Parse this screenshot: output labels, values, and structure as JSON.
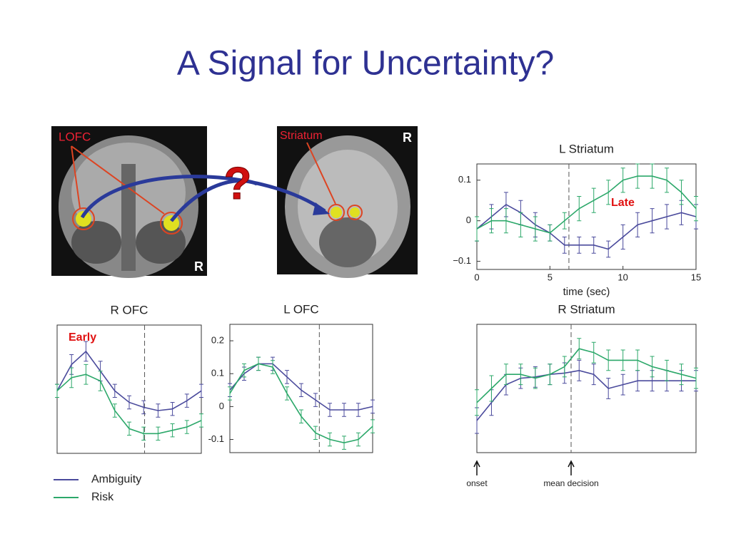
{
  "title": "A Signal for Uncertainty?",
  "images": [
    {
      "label": "LOFC",
      "corner": "R"
    },
    {
      "label": "Striatum",
      "corner": "R"
    }
  ],
  "question": "?",
  "chart_data": [
    {
      "type": "line",
      "title": "R OFC",
      "annotation": "Early",
      "x": [
        0,
        1.5,
        3,
        4.5,
        6,
        7.5,
        9,
        10.5,
        12,
        13.5,
        15
      ],
      "xlim": [
        0,
        15
      ],
      "ylim": [
        -0.14,
        0.25
      ],
      "vline": 9.1,
      "series": [
        {
          "name": "Ambiguity",
          "color": "#4a4a9c",
          "values": [
            0.05,
            0.13,
            0.17,
            0.11,
            0.05,
            0.015,
            0,
            -0.01,
            -0.005,
            0.02,
            0.05
          ],
          "errors": [
            0.02,
            0.03,
            0.03,
            0.03,
            0.02,
            0.02,
            0.02,
            0.02,
            0.02,
            0.02,
            0.02
          ]
        },
        {
          "name": "Risk",
          "color": "#2ca86a",
          "values": [
            0.05,
            0.09,
            0.1,
            0.08,
            -0.01,
            -0.065,
            -0.08,
            -0.08,
            -0.07,
            -0.06,
            -0.04
          ],
          "errors": [
            0.02,
            0.03,
            0.03,
            0.03,
            0.02,
            0.02,
            0.02,
            0.02,
            0.02,
            0.02,
            0.02
          ]
        }
      ]
    },
    {
      "type": "line",
      "title": "L OFC",
      "x": [
        0,
        1.5,
        3,
        4.5,
        6,
        7.5,
        9,
        10.5,
        12,
        13.5,
        15
      ],
      "xlim": [
        0,
        15
      ],
      "ylim": [
        -0.14,
        0.25
      ],
      "vline": 9.4,
      "yticks": [
        0.2,
        0.1,
        0,
        -0.1
      ],
      "series": [
        {
          "name": "Ambiguity",
          "color": "#4a4a9c",
          "values": [
            0.05,
            0.1,
            0.13,
            0.13,
            0.09,
            0.05,
            0.02,
            -0.01,
            -0.01,
            -0.01,
            0.0
          ],
          "errors": [
            0.02,
            0.02,
            0.02,
            0.02,
            0.02,
            0.02,
            0.02,
            0.02,
            0.02,
            0.02,
            0.02
          ]
        },
        {
          "name": "Risk",
          "color": "#2ca86a",
          "values": [
            0.04,
            0.11,
            0.13,
            0.12,
            0.04,
            -0.03,
            -0.08,
            -0.1,
            -0.11,
            -0.1,
            -0.06
          ],
          "errors": [
            0.02,
            0.02,
            0.02,
            0.02,
            0.02,
            0.02,
            0.02,
            0.02,
            0.02,
            0.02,
            0.02
          ]
        }
      ]
    },
    {
      "type": "line",
      "title": "L Striatum",
      "annotation": "Late",
      "xlabel": "time (sec)",
      "x": [
        0,
        1,
        2,
        3,
        4,
        5,
        6,
        7,
        8,
        9,
        10,
        11,
        12,
        13,
        14,
        15
      ],
      "xlim": [
        0,
        15
      ],
      "ylim": [
        -0.12,
        0.14
      ],
      "vline": 6.3,
      "xticks": [
        0,
        5,
        10,
        15
      ],
      "yticks": [
        0.1,
        0,
        {
          "value": -0.1,
          "label": "−0.1"
        }
      ],
      "series": [
        {
          "name": "Ambiguity",
          "color": "#4a4a9c",
          "values": [
            -0.02,
            0.01,
            0.04,
            0.02,
            -0.01,
            -0.03,
            -0.06,
            -0.06,
            -0.06,
            -0.07,
            -0.04,
            -0.01,
            0.0,
            0.01,
            0.02,
            0.01
          ],
          "errors": [
            0.03,
            0.03,
            0.03,
            0.03,
            0.03,
            0.02,
            0.02,
            0.02,
            0.02,
            0.02,
            0.03,
            0.03,
            0.03,
            0.03,
            0.03,
            0.03
          ]
        },
        {
          "name": "Risk",
          "color": "#2ca86a",
          "values": [
            -0.02,
            0.0,
            0.0,
            -0.01,
            -0.02,
            -0.03,
            0.0,
            0.03,
            0.05,
            0.07,
            0.1,
            0.11,
            0.11,
            0.1,
            0.07,
            0.03
          ],
          "errors": [
            0.03,
            0.03,
            0.03,
            0.03,
            0.03,
            0.02,
            0.02,
            0.03,
            0.03,
            0.03,
            0.03,
            0.03,
            0.03,
            0.03,
            0.03,
            0.03
          ]
        }
      ]
    },
    {
      "type": "line",
      "title": "R Striatum",
      "x": [
        0,
        1,
        2,
        3,
        4,
        5,
        6,
        7,
        8,
        9,
        10,
        11,
        12,
        13,
        14,
        15
      ],
      "xlim": [
        0,
        15
      ],
      "ylim": [
        0,
        1
      ],
      "vline": 6.45,
      "markers": [
        {
          "text": "onset",
          "x": 0
        },
        {
          "text": "mean decision",
          "x": 6.45
        }
      ],
      "series": [
        {
          "name": "Ambiguity",
          "color": "#4a4a9c",
          "values": [
            0.25,
            0.39,
            0.53,
            0.58,
            0.59,
            0.61,
            0.62,
            0.64,
            0.61,
            0.5,
            0.53,
            0.56,
            0.56,
            0.56,
            0.56,
            0.56
          ],
          "errors": [
            0.1,
            0.1,
            0.08,
            0.08,
            0.08,
            0.08,
            0.08,
            0.08,
            0.08,
            0.08,
            0.08,
            0.08,
            0.08,
            0.08,
            0.08,
            0.08
          ]
        },
        {
          "name": "Risk",
          "color": "#2ca86a",
          "values": [
            0.39,
            0.5,
            0.61,
            0.61,
            0.58,
            0.61,
            0.67,
            0.81,
            0.78,
            0.72,
            0.72,
            0.72,
            0.67,
            0.64,
            0.61,
            0.58
          ],
          "errors": [
            0.1,
            0.1,
            0.08,
            0.08,
            0.08,
            0.08,
            0.08,
            0.08,
            0.08,
            0.08,
            0.08,
            0.08,
            0.08,
            0.08,
            0.08,
            0.08
          ]
        }
      ]
    }
  ]
}
